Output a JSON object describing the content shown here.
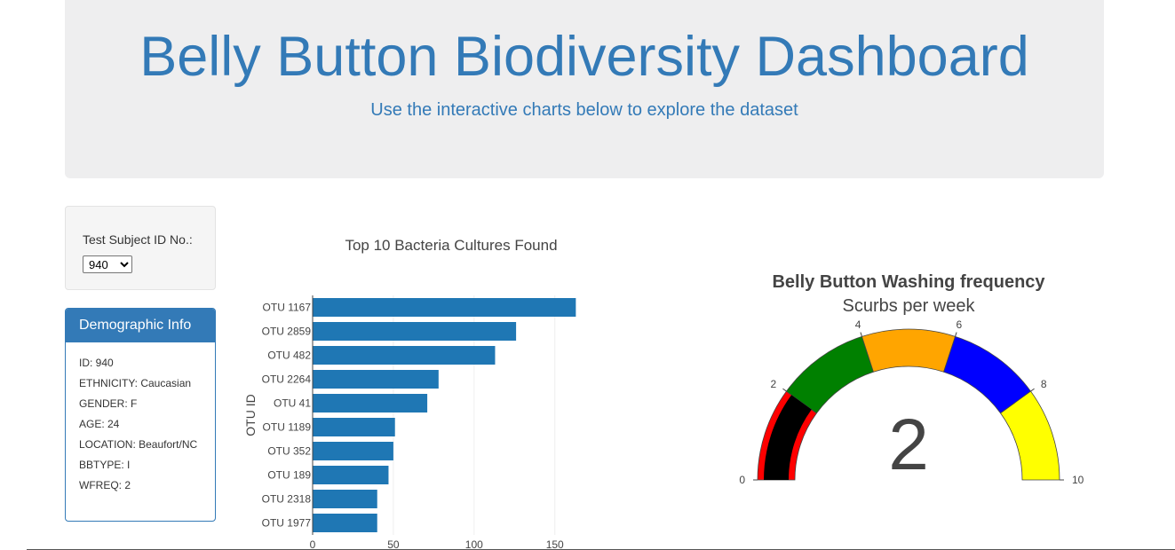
{
  "header": {
    "title": "Belly Button Biodiversity Dashboard",
    "subtitle": "Use the interactive charts below to explore the dataset"
  },
  "selector": {
    "label": "Test Subject ID No.:",
    "selected": "940"
  },
  "demographics": {
    "heading": "Demographic Info",
    "rows": [
      "ID: 940",
      "ETHNICITY: Caucasian",
      "GENDER: F",
      "AGE: 24",
      "LOCATION: Beaufort/NC",
      "BBTYPE: I",
      "WFREQ: 2"
    ]
  },
  "colors": {
    "bar": "#1f77b4",
    "header_text": "#337ab7",
    "panel": "#337ab7"
  },
  "chart_data": [
    {
      "type": "bar",
      "orientation": "horizontal",
      "title": "Top 10 Bacteria Cultures Found",
      "xlabel": "",
      "ylabel": "OTU ID",
      "categories": [
        "OTU 1167",
        "OTU 2859",
        "OTU 482",
        "OTU 2264",
        "OTU 41",
        "OTU 1189",
        "OTU 352",
        "OTU 189",
        "OTU 2318",
        "OTU 1977"
      ],
      "values": [
        163,
        126,
        113,
        78,
        71,
        51,
        50,
        47,
        40,
        40
      ],
      "xlim": [
        0,
        165
      ],
      "xticks": [
        0,
        50,
        100,
        150
      ],
      "grid": true
    },
    {
      "type": "gauge",
      "title": "Belly Button Washing frequency",
      "subtitle": "Scurbs per week",
      "value": 2,
      "range": [
        0,
        10
      ],
      "ticks": [
        0,
        2,
        4,
        6,
        8,
        10
      ],
      "bands": [
        {
          "from": 0,
          "to": 2,
          "color": "#ff0000"
        },
        {
          "from": 2,
          "to": 4,
          "color": "#008000"
        },
        {
          "from": 4,
          "to": 6,
          "color": "#ffa500"
        },
        {
          "from": 6,
          "to": 8,
          "color": "#0000ff"
        },
        {
          "from": 8,
          "to": 10,
          "color": "#ffff00"
        }
      ],
      "bar_color": "#000000"
    }
  ]
}
